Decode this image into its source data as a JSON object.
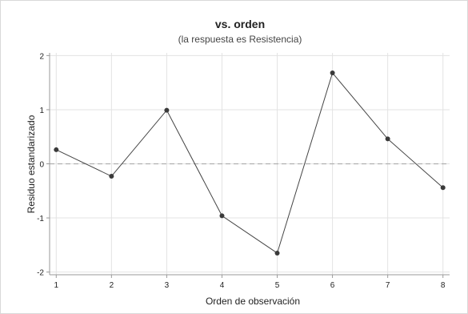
{
  "chart_data": {
    "type": "line",
    "title": "vs. orden",
    "subtitle": "(la respuesta es Resistencia)",
    "xlabel": "Orden de observación",
    "ylabel": "Residuo estandarizado",
    "x": [
      1,
      2,
      3,
      4,
      5,
      6,
      7,
      8
    ],
    "y": [
      0.26,
      -0.23,
      0.99,
      -0.96,
      -1.65,
      1.68,
      0.46,
      -0.44
    ],
    "xlim": [
      0.88,
      8.12
    ],
    "ylim": [
      -2.05,
      2.05
    ],
    "xticks": [
      1,
      2,
      3,
      4,
      5,
      6,
      7,
      8
    ],
    "yticks": [
      -2,
      -1,
      0,
      1,
      2
    ],
    "reference_line": 0,
    "grid": true,
    "colors": {
      "line": "#444444",
      "marker": "#3a3a3a",
      "grid": "#e3e3e3",
      "reference": "#b0b0b0",
      "axis": "#9a9a9a"
    }
  }
}
